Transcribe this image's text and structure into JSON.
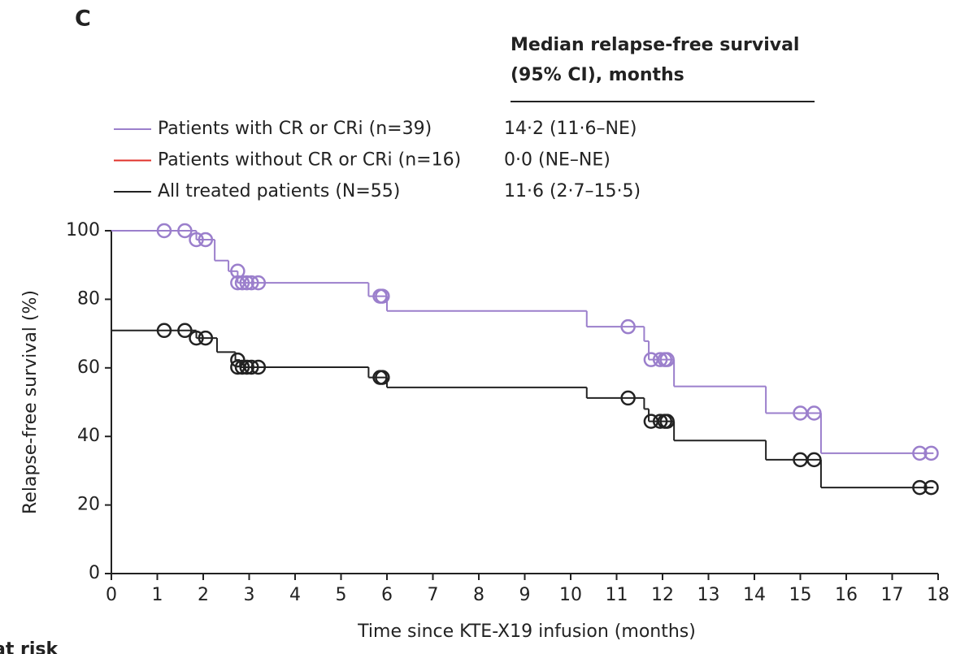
{
  "chart_data": {
    "type": "km",
    "panel_label": "C",
    "table_header": [
      "Median relapse-free survival",
      "(95% CI), months"
    ],
    "y_label": "Relapse-free survival (%)",
    "x_label": "Time since KTE-X19 infusion (months)",
    "footer": "at risk",
    "xlim": [
      0,
      18
    ],
    "xticks": [
      0,
      1,
      2,
      3,
      4,
      5,
      6,
      7,
      8,
      9,
      10,
      11,
      12,
      13,
      14,
      15,
      16,
      17,
      18
    ],
    "ylim": [
      0,
      100
    ],
    "yticks": [
      0,
      20,
      40,
      60,
      80,
      100
    ],
    "series": [
      {
        "name": "Patients with CR or CRi (n=39)",
        "median_text": "14·2 (11·6–NE)",
        "color": "#9b7fcc",
        "x": [
          0,
          1.85,
          2.25,
          2.55,
          2.75,
          5.6,
          6.0,
          10.35,
          11.6,
          11.7,
          12.25,
          14.25,
          15.45,
          17.9
        ],
        "values": [
          100,
          97.4,
          91.3,
          88.2,
          84.8,
          80.9,
          76.6,
          72.0,
          67.8,
          62.4,
          54.6,
          46.8,
          35.1,
          35.1
        ],
        "censor_x": [
          1.15,
          1.6,
          1.85,
          2.05,
          2.75,
          2.75,
          2.85,
          2.95,
          3.05,
          3.2,
          5.85,
          5.9,
          11.25,
          11.75,
          11.95,
          12.05,
          12.1,
          15.0,
          15.3,
          17.6,
          17.85
        ],
        "censor_values": [
          100,
          100,
          97.4,
          97.4,
          88.2,
          84.8,
          84.8,
          84.8,
          84.8,
          84.8,
          80.9,
          80.9,
          72.0,
          62.4,
          62.4,
          62.4,
          62.4,
          46.8,
          46.8,
          35.1,
          35.1
        ]
      },
      {
        "name": "Patients without CR or CRi (n=16)",
        "median_text": "0·0 (NE–NE)",
        "color": "#e0322a",
        "x": [],
        "values": [],
        "censor_x": [],
        "censor_values": []
      },
      {
        "name": "All treated patients (N=55)",
        "median_text": "11·6 (2·7–15·5)",
        "color": "#222222",
        "x": [
          0,
          1.85,
          2.3,
          2.7,
          2.8,
          5.6,
          6.0,
          10.35,
          11.6,
          11.7,
          12.25,
          14.25,
          15.45,
          17.9
        ],
        "values": [
          70.9,
          68.7,
          64.6,
          62.3,
          60.2,
          57.2,
          54.3,
          51.2,
          48.0,
          44.4,
          38.8,
          33.2,
          25.1,
          25.1
        ],
        "censor_x": [
          1.15,
          1.6,
          1.85,
          2.05,
          2.75,
          2.75,
          2.85,
          2.95,
          3.05,
          3.2,
          5.85,
          5.9,
          11.25,
          11.75,
          11.95,
          12.05,
          12.1,
          15.0,
          15.3,
          17.6,
          17.85
        ],
        "censor_values": [
          70.9,
          70.9,
          68.7,
          68.7,
          62.3,
          60.2,
          60.2,
          60.2,
          60.2,
          60.2,
          57.2,
          57.2,
          51.2,
          44.4,
          44.4,
          44.4,
          44.4,
          33.2,
          33.2,
          25.1,
          25.1
        ]
      }
    ]
  }
}
